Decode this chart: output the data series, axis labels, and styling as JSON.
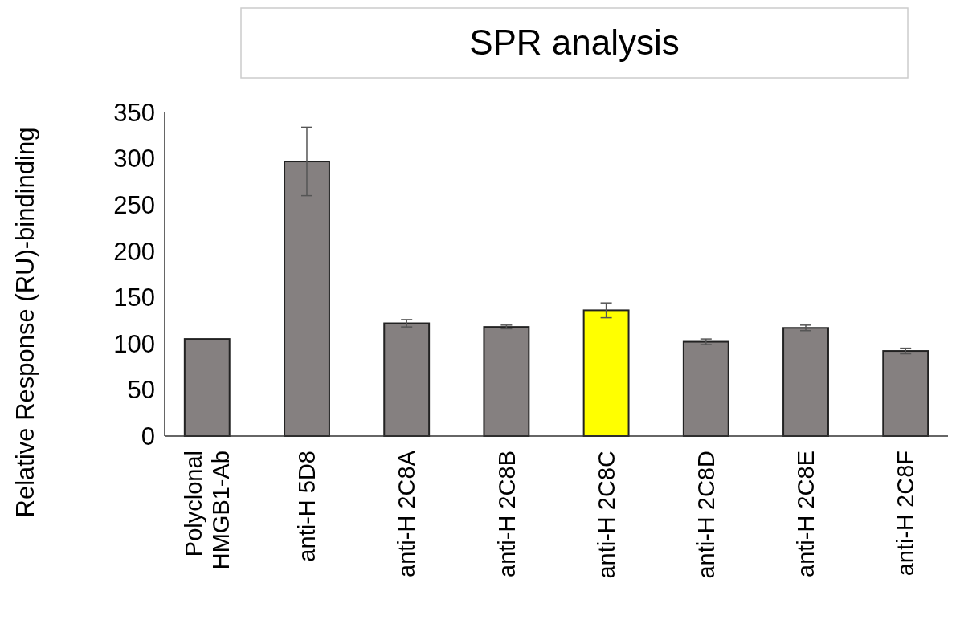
{
  "chart_data": {
    "type": "bar",
    "title": "SPR analysis",
    "ylabel": "Relative Response (RU)-bindinding",
    "categories": [
      "Polyclonal\nHMGB1-Ab",
      "anti-H 5D8",
      "anti-H 2C8A",
      "anti-H 2C8B",
      "anti-H 2C8C",
      "anti-H 2C8D",
      "anti-H 2C8E",
      "anti-H 2C8F"
    ],
    "values": [
      105,
      297,
      122,
      118,
      136,
      102,
      117,
      92
    ],
    "errors": [
      null,
      37,
      4,
      2,
      8,
      3,
      3,
      3
    ],
    "colors": [
      "#858080",
      "#858080",
      "#858080",
      "#858080",
      "#ffff00",
      "#858080",
      "#858080",
      "#858080"
    ],
    "ylim": [
      0,
      350
    ],
    "yticks": [
      0,
      50,
      100,
      150,
      200,
      250,
      300,
      350
    ],
    "grid": false
  }
}
